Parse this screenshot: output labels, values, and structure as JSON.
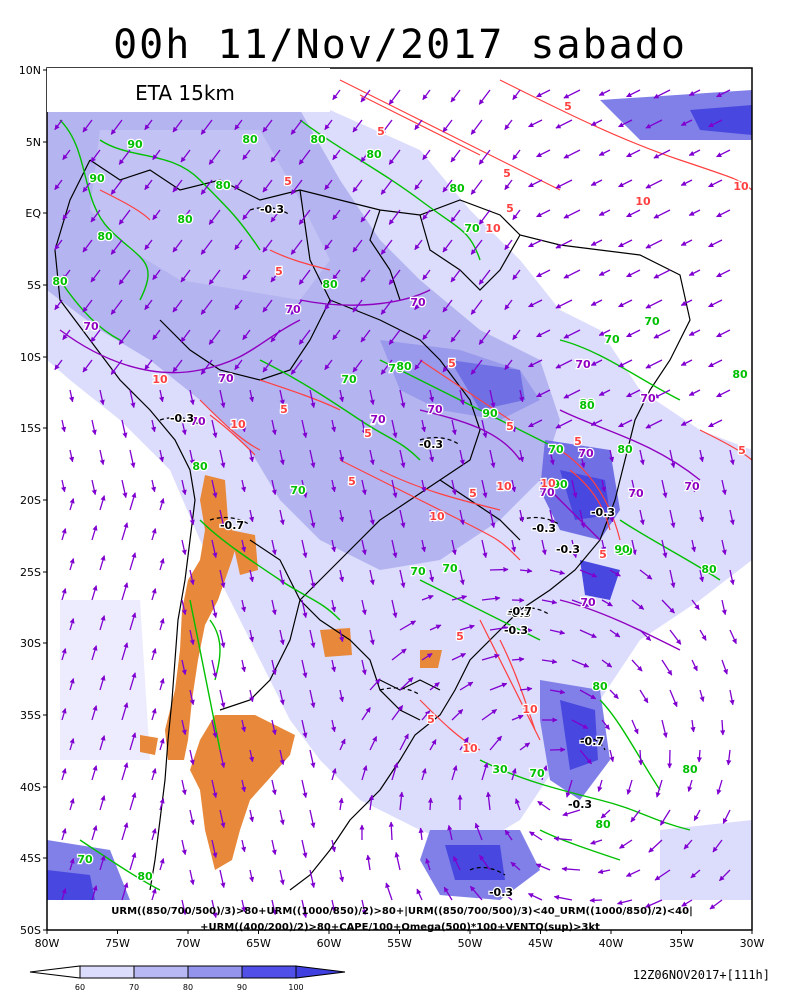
{
  "header": {
    "title": "00h 11/Nov/2017 sabado"
  },
  "model_label": "ETA 15km",
  "lat_labels": [
    "10N",
    "5N",
    "EQ",
    "5S",
    "10S",
    "15S",
    "20S",
    "25S",
    "30S",
    "35S",
    "40S",
    "45S",
    "50S"
  ],
  "lon_labels": [
    "80W",
    "75W",
    "70W",
    "65W",
    "60W",
    "55W",
    "50W",
    "45W",
    "40W",
    "35W",
    "30W"
  ],
  "contour_labels": {
    "green": [
      "90",
      "90",
      "80",
      "80",
      "80",
      "80",
      "80",
      "80",
      "80",
      "70",
      "80",
      "80",
      "70",
      "70",
      "70",
      "80",
      "90",
      "70",
      "80",
      "70",
      "70",
      "80",
      "80",
      "90",
      "80",
      "70",
      "70",
      "80",
      "70",
      "30",
      "80",
      "80",
      "90",
      "80",
      "70",
      "80",
      "80",
      "90",
      "70"
    ],
    "purple": [
      "70",
      "70",
      "70",
      "70",
      "70",
      "70",
      "70",
      "70",
      "70",
      "70",
      "70",
      "70",
      "70",
      "70"
    ],
    "red": [
      "5",
      "5",
      "5",
      "5",
      "10",
      "5",
      "10",
      "10",
      "5",
      "10",
      "10",
      "5",
      "5",
      "5",
      "10",
      "5",
      "10",
      "5",
      "5",
      "5",
      "10",
      "5",
      "10",
      "5",
      "10",
      "5",
      "5"
    ],
    "black": [
      "-0.3",
      "-0.3",
      "-0.3",
      "-0.7",
      "-0.3",
      "-0.3",
      "-0.3",
      "-0.3",
      "-0.7",
      "-0.3",
      "-0.7",
      "-0.3",
      "-0.3"
    ]
  },
  "formula_line1": "URM((850/700/500)/3)>80+URM((1000/850)/2)>80+|URM((850/700/500)/3)<40_URM((1000/850)/2)<40|",
  "formula_line2": "+URM((400/200)/2)>80+CAPE/100+Omega(500)*100+VENTO(sup)>3kt",
  "colorbar": {
    "labels": [
      "60",
      "70",
      "80",
      "90",
      "100"
    ],
    "colors": [
      "#ffffff",
      "#dcdcfc",
      "#b8b8f4",
      "#9494ec",
      "#5050e8"
    ]
  },
  "run_info": "12Z06NOV2017+[111h]",
  "colors": {
    "ocean_shade": "#dcdcfc",
    "humid_mid": "#b4b4f0",
    "humid_high": "#8080e8",
    "humid_max": "#4848e0",
    "dry_orange": "#e8883a",
    "green_contour": "#00c000",
    "red_contour": "#ff4040",
    "purple_contour": "#9000c0",
    "wind_arrow": "#8000d0"
  }
}
